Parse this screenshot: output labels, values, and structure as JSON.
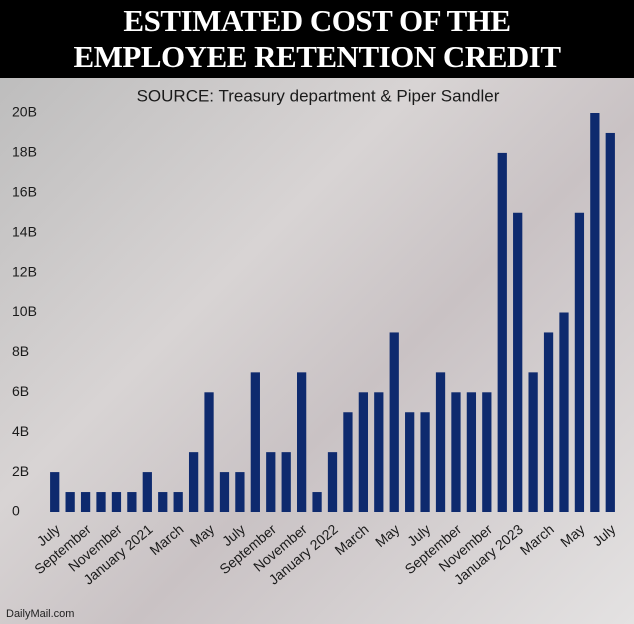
{
  "chart_data": {
    "type": "bar",
    "title": "ESTIMATED COST OF THE EMPLOYEE RETENTION CREDIT",
    "subtitle": "SOURCE: Treasury department & Piper Sandler",
    "credit": "DailyMail.com",
    "categories": [
      "July",
      null,
      "September",
      null,
      "November",
      null,
      "January 2021",
      null,
      "March",
      null,
      "May",
      null,
      "July",
      null,
      "September",
      null,
      "November",
      null,
      "January 2022",
      null,
      "March",
      null,
      "May",
      null,
      "July",
      null,
      "September",
      null,
      "November",
      null,
      "January 2023",
      null,
      "March",
      null,
      "May",
      null,
      "July"
    ],
    "values": [
      2,
      1,
      1,
      1,
      1,
      1,
      2,
      1,
      1,
      3,
      6,
      2,
      2,
      7,
      3,
      3,
      7,
      1,
      3,
      5,
      6,
      6,
      9,
      5,
      5,
      7,
      6,
      6,
      6,
      18,
      15,
      7,
      9,
      10,
      15,
      20,
      19
    ],
    "color": "#0e2a6e",
    "ylim": [
      0,
      20
    ],
    "yticks": [
      0,
      {
        "value": 2,
        "label": "2B"
      },
      {
        "value": 4,
        "label": "4B"
      },
      {
        "value": 6,
        "label": "6B"
      },
      {
        "value": 8,
        "label": "8B"
      },
      {
        "value": 10,
        "label": "10B"
      },
      {
        "value": 12,
        "label": "12B"
      },
      {
        "value": 14,
        "label": "14B"
      },
      {
        "value": 16,
        "label": "16B"
      },
      {
        "value": 18,
        "label": "18B"
      },
      {
        "value": 20,
        "label": "20B"
      }
    ],
    "grid": false
  }
}
